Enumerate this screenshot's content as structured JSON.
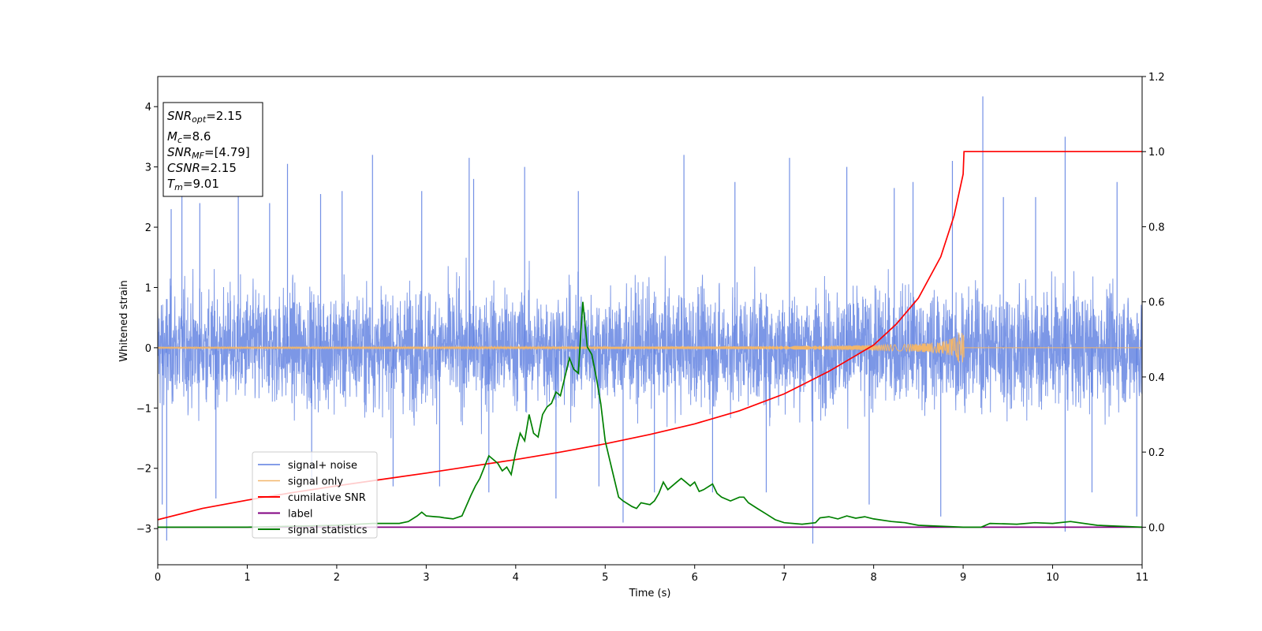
{
  "chart_data": {
    "type": "line",
    "xlabel": "Time (s)",
    "ylabel": "Whitened strain",
    "xlim": [
      0,
      11
    ],
    "ylim_left": [
      -3.6,
      4.5
    ],
    "ylim_right": [
      -0.1,
      1.2
    ],
    "x_ticks": [
      "0",
      "1",
      "2",
      "3",
      "4",
      "5",
      "6",
      "7",
      "8",
      "9",
      "10",
      "11"
    ],
    "y_left_ticks": [
      "−3",
      "−2",
      "−1",
      "0",
      "1",
      "2",
      "3",
      "4"
    ],
    "y_right_ticks": [
      "0.0",
      "0.2",
      "0.4",
      "0.6",
      "0.8",
      "1.0",
      "1.2"
    ],
    "grid": false,
    "legend_placement": "lower-left",
    "info_box": {
      "snr_opt": "=2.15",
      "mc": "=8.6",
      "snr_mf": "=[4.79]",
      "csnr": "=2.15",
      "tm": "=9.01"
    },
    "series": [
      {
        "name": "signal+ noise",
        "axis": "left",
        "color": "#5b7de0",
        "description_kind": "noise band",
        "amplitude_typical": 1.5,
        "spikes": [
          [
            0.05,
            -2.6
          ],
          [
            0.1,
            -3.2
          ],
          [
            0.15,
            2.3
          ],
          [
            0.27,
            2.7
          ],
          [
            0.47,
            2.4
          ],
          [
            0.65,
            -2.5
          ],
          [
            0.9,
            2.6
          ],
          [
            1.25,
            2.4
          ],
          [
            1.45,
            3.05
          ],
          [
            1.72,
            -2.2
          ],
          [
            1.82,
            2.55
          ],
          [
            2.06,
            2.6
          ],
          [
            2.4,
            3.2
          ],
          [
            2.63,
            -2.3
          ],
          [
            2.95,
            2.6
          ],
          [
            3.15,
            -2.3
          ],
          [
            3.48,
            3.15
          ],
          [
            3.53,
            2.8
          ],
          [
            3.7,
            -2.4
          ],
          [
            4.1,
            3.0
          ],
          [
            4.45,
            -2.5
          ],
          [
            4.7,
            2.6
          ],
          [
            4.93,
            -2.3
          ],
          [
            5.2,
            -2.9
          ],
          [
            5.55,
            -2.4
          ],
          [
            5.88,
            3.2
          ],
          [
            6.2,
            -2.4
          ],
          [
            6.45,
            2.75
          ],
          [
            6.8,
            -2.4
          ],
          [
            7.06,
            3.15
          ],
          [
            7.32,
            -3.25
          ],
          [
            7.7,
            3.0
          ],
          [
            7.95,
            -2.6
          ],
          [
            8.23,
            2.65
          ],
          [
            8.44,
            2.75
          ],
          [
            8.75,
            -2.8
          ],
          [
            8.88,
            3.1
          ],
          [
            9.22,
            4.17
          ],
          [
            9.45,
            2.5
          ],
          [
            9.81,
            2.5
          ],
          [
            10.14,
            3.5
          ],
          [
            10.14,
            -3.05
          ],
          [
            10.44,
            -2.4
          ],
          [
            10.72,
            2.75
          ],
          [
            10.94,
            -2.8
          ]
        ]
      },
      {
        "name": "signal only",
        "axis": "left",
        "color": "#f2b66b",
        "chirp_end_time": 9.01,
        "max_amplitude": 0.25
      },
      {
        "name": "cumilative SNR",
        "axis": "right",
        "color": "#ff0000",
        "x": [
          0,
          0.5,
          1,
          1.5,
          2,
          2.5,
          3,
          3.5,
          4,
          4.5,
          5,
          5.5,
          6,
          6.5,
          7,
          7.5,
          8,
          8.25,
          8.5,
          8.75,
          8.9,
          9.0,
          9.01,
          10,
          11
        ],
        "y": [
          0.02,
          0.05,
          0.072,
          0.092,
          0.11,
          0.127,
          0.144,
          0.162,
          0.18,
          0.2,
          0.222,
          0.247,
          0.275,
          0.31,
          0.355,
          0.415,
          0.485,
          0.54,
          0.61,
          0.72,
          0.83,
          0.94,
          1.0,
          1.0,
          1.0
        ]
      },
      {
        "name": "label",
        "axis": "right",
        "color": "#800080",
        "x": [
          0,
          11
        ],
        "y": [
          0.0,
          0.0
        ]
      },
      {
        "name": "signal statistics",
        "axis": "right",
        "color": "#008000",
        "x": [
          0,
          1.0,
          2.0,
          2.4,
          2.7,
          2.8,
          2.9,
          2.95,
          3.0,
          3.1,
          3.15,
          3.2,
          3.3,
          3.4,
          3.5,
          3.55,
          3.6,
          3.7,
          3.8,
          3.85,
          3.9,
          3.95,
          4.0,
          4.05,
          4.1,
          4.15,
          4.2,
          4.25,
          4.3,
          4.35,
          4.4,
          4.45,
          4.5,
          4.55,
          4.6,
          4.65,
          4.7,
          4.75,
          4.8,
          4.85,
          4.9,
          4.95,
          5.0,
          5.05,
          5.1,
          5.15,
          5.2,
          5.3,
          5.35,
          5.4,
          5.5,
          5.55,
          5.6,
          5.65,
          5.7,
          5.8,
          5.85,
          5.9,
          5.95,
          6.0,
          6.05,
          6.1,
          6.2,
          6.25,
          6.3,
          6.4,
          6.5,
          6.55,
          6.6,
          6.7,
          6.8,
          6.9,
          7.0,
          7.2,
          7.35,
          7.4,
          7.5,
          7.6,
          7.7,
          7.8,
          7.9,
          8.0,
          8.2,
          8.35,
          8.5,
          9.0,
          9.2,
          9.3,
          9.6,
          9.8,
          10.0,
          10.2,
          10.5,
          11.0
        ],
        "y": [
          0.0,
          0.0,
          0.005,
          0.01,
          0.01,
          0.015,
          0.03,
          0.04,
          0.03,
          0.028,
          0.027,
          0.025,
          0.022,
          0.03,
          0.085,
          0.11,
          0.13,
          0.19,
          0.17,
          0.15,
          0.16,
          0.14,
          0.2,
          0.25,
          0.23,
          0.3,
          0.25,
          0.24,
          0.3,
          0.32,
          0.33,
          0.36,
          0.35,
          0.4,
          0.45,
          0.42,
          0.41,
          0.6,
          0.48,
          0.46,
          0.4,
          0.33,
          0.23,
          0.18,
          0.13,
          0.08,
          0.07,
          0.055,
          0.05,
          0.065,
          0.06,
          0.07,
          0.09,
          0.12,
          0.1,
          0.12,
          0.13,
          0.12,
          0.11,
          0.12,
          0.095,
          0.1,
          0.115,
          0.09,
          0.08,
          0.07,
          0.08,
          0.08,
          0.065,
          0.05,
          0.035,
          0.02,
          0.012,
          0.008,
          0.012,
          0.025,
          0.028,
          0.022,
          0.03,
          0.024,
          0.028,
          0.022,
          0.015,
          0.012,
          0.005,
          0.0,
          0.0,
          0.01,
          0.008,
          0.012,
          0.01,
          0.015,
          0.005,
          0.0
        ]
      }
    ]
  }
}
